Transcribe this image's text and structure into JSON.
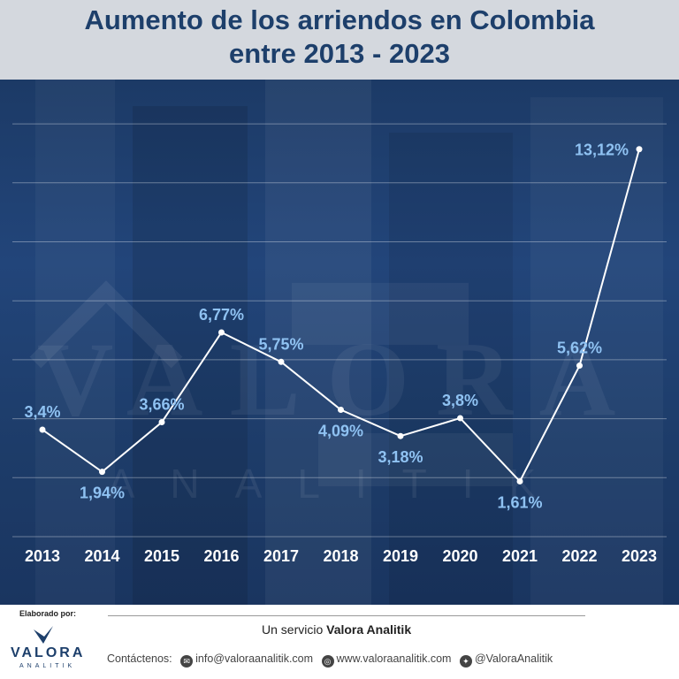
{
  "header": {
    "title_line1": "Aumento de los arriendos en Colombia",
    "title_line2": "entre 2013 - 2023"
  },
  "chart_data": {
    "type": "line",
    "title": "Aumento de los arriendos en Colombia entre 2013 - 2023",
    "categories": [
      "2013",
      "2014",
      "2015",
      "2016",
      "2017",
      "2018",
      "2019",
      "2020",
      "2021",
      "2022",
      "2023"
    ],
    "values": [
      3.4,
      1.94,
      3.66,
      6.77,
      5.75,
      4.09,
      3.18,
      3.8,
      1.61,
      5.62,
      13.12
    ],
    "labels": [
      "3,4%",
      "1,94%",
      "3,66%",
      "6,77%",
      "5,75%",
      "4,09%",
      "3,18%",
      "3,8%",
      "1,61%",
      "5,62%",
      "13,12%"
    ],
    "label_side": [
      "above",
      "below",
      "above",
      "above",
      "above",
      "below",
      "below",
      "above",
      "below",
      "above",
      "left"
    ],
    "ylim": [
      0,
      14
    ],
    "grid": true,
    "line_color": "#ffffff",
    "label_color": "#8fc2f2"
  },
  "watermark": {
    "main": "VALORA",
    "sub": "ANALITIK"
  },
  "footer": {
    "elaborado": "Elaborado por:",
    "logo_name": "VALORA",
    "logo_sub": "ANALITIK",
    "service_prefix": "Un servicio ",
    "service_name": "Valora Analitik",
    "contact_label": "Contáctenos:",
    "email": "info@valoraanalitik.com",
    "website": "www.valoraanalitik.com",
    "twitter": "@ValoraAnalitik",
    "icons": [
      "email-icon",
      "globe-icon",
      "twitter-icon"
    ]
  }
}
